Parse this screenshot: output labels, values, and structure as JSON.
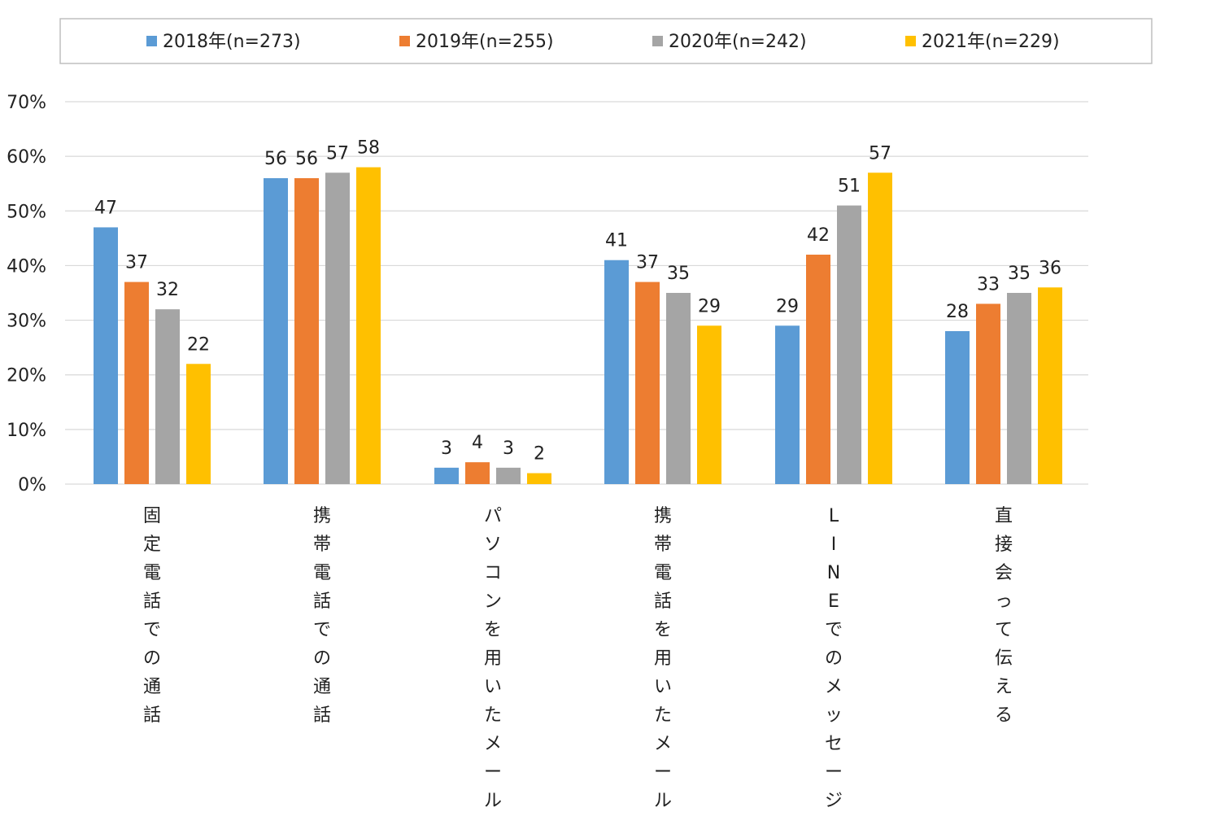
{
  "chart_data": {
    "type": "bar",
    "title": "",
    "xlabel": "",
    "ylabel": "",
    "ylim": [
      0,
      70
    ],
    "y_ticks": [
      0,
      10,
      20,
      30,
      40,
      50,
      60,
      70
    ],
    "y_tick_labels": [
      "0%",
      "10%",
      "20%",
      "30%",
      "40%",
      "50%",
      "60%",
      "70%"
    ],
    "grid": true,
    "legend_position": "top",
    "categories": [
      "固定電話での通話",
      "携帯電話での通話",
      "パソコンを用いたメール",
      "携帯電話を用いたメール",
      "LINEでのメッセージ",
      "直接会って伝える"
    ],
    "series": [
      {
        "name": "2018年(n=273)",
        "color": "#5b9bd5",
        "values": [
          47,
          56,
          3,
          41,
          29,
          28
        ]
      },
      {
        "name": "2019年(n=255)",
        "color": "#ed7d31",
        "values": [
          37,
          56,
          4,
          37,
          42,
          33
        ]
      },
      {
        "name": "2020年(n=242)",
        "color": "#a5a5a5",
        "values": [
          32,
          57,
          3,
          35,
          51,
          35
        ]
      },
      {
        "name": "2021年(n=229)",
        "color": "#ffc000",
        "values": [
          22,
          58,
          2,
          29,
          57,
          36
        ]
      }
    ],
    "data_label_values": [
      [
        47,
        56,
        3,
        41,
        29,
        28
      ],
      [
        37,
        56,
        4,
        37,
        42,
        33
      ],
      [
        32,
        57,
        3,
        35,
        51,
        35
      ],
      [
        22,
        58,
        2,
        29,
        57,
        36
      ]
    ]
  }
}
